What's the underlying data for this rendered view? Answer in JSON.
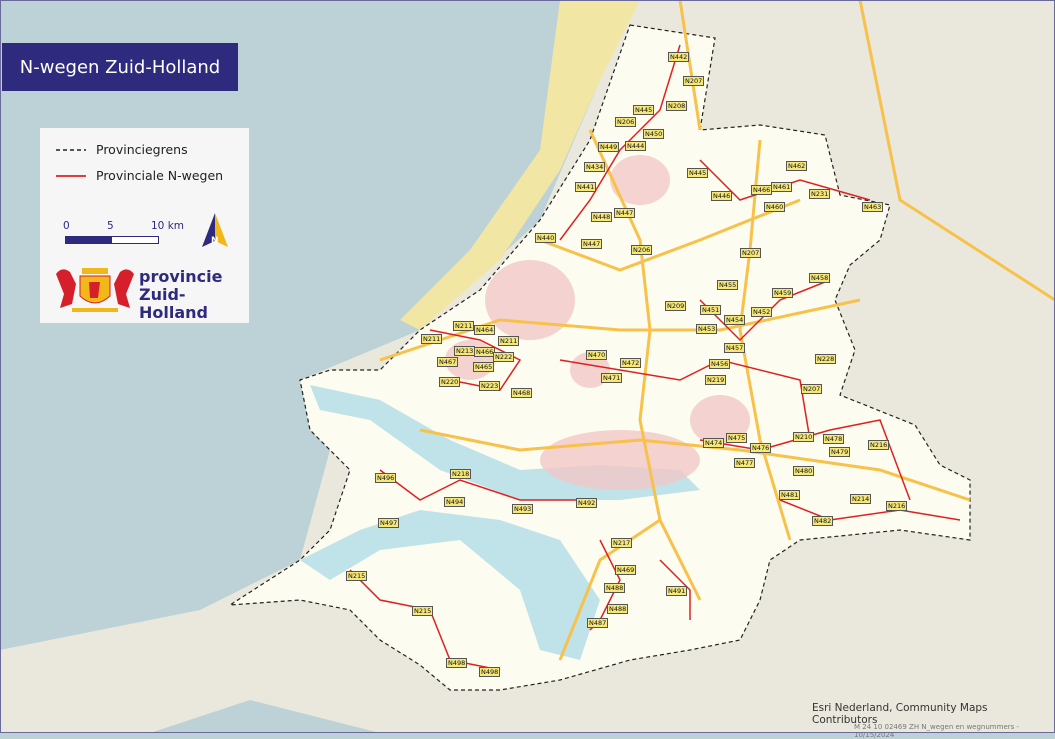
{
  "title": "N-wegen Zuid-Holland",
  "legend": {
    "items": [
      {
        "label": "Provinciegrens",
        "symbol": "dashed-black-line"
      },
      {
        "label": "Provinciale N-wegen",
        "symbol": "solid-red-line"
      }
    ],
    "scale": {
      "labels": [
        "0",
        "5",
        "10 km"
      ]
    },
    "north_arrow": "N",
    "logo": {
      "line1": "provincie",
      "line2": "Zuid-Holland",
      "emblem": "coat-of-arms-icon"
    }
  },
  "credit": "Esri Nederland, Community Maps Contributors",
  "document_id": "M 24 10 02469 ZH N_wegen en wegnummers - 10/15/2024",
  "colors": {
    "title_bg": "#2e2a7e",
    "sea": "#bcd2d6",
    "land": "#eae8dc",
    "province": "#fdfcf0",
    "road_major": "#f7c14a",
    "n_road": "#e02020",
    "label_bg": "#f5e77a"
  },
  "road_labels": [
    "N442",
    "N207",
    "N208",
    "N445",
    "N206",
    "N450",
    "N449",
    "N444",
    "N434",
    "N441",
    "N445",
    "N446",
    "N462",
    "N461",
    "N466",
    "N231",
    "N460",
    "N463",
    "N448",
    "N447",
    "N440",
    "N447",
    "N206",
    "N207",
    "N458",
    "N455",
    "N459",
    "N209",
    "N451",
    "N452",
    "N454",
    "N453",
    "N211",
    "N464",
    "N211",
    "N211",
    "N213",
    "N466",
    "N222",
    "N467",
    "N465",
    "N457",
    "N470",
    "N472",
    "N456",
    "N228",
    "N471",
    "N220",
    "N223",
    "N219",
    "N207",
    "N468",
    "N474",
    "N475",
    "N476",
    "N210",
    "N478",
    "N216",
    "N479",
    "N477",
    "N480",
    "N218",
    "N496",
    "N494",
    "N493",
    "N492",
    "N481",
    "N214",
    "N216",
    "N497",
    "N482",
    "N217",
    "N469",
    "N215",
    "N488",
    "N491",
    "N488",
    "N215",
    "N487",
    "N498",
    "N498"
  ]
}
